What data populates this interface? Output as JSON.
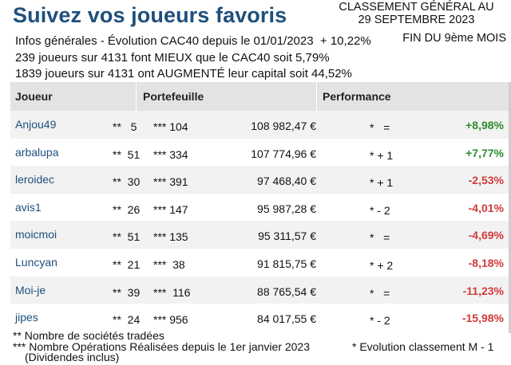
{
  "header": {
    "title": "Suivez vos joueurs favoris",
    "classement_line1": "CLASSEMENT GÉNÉRAL AU",
    "classement_line2": "29 SEPTEMBRE 2023",
    "fin_mois": "FIN DU 9ème MOIS"
  },
  "info": {
    "line1": "Infos générales - Évolution CAC40 depuis le 01/01/2023  + 10,22%",
    "line2": "239 joueurs sur 4131 font MIEUX que le CAC40 soit 5,79%",
    "line3": "1839 joueurs sur 4131 ont AUGMENTÉ leur capital soit 44,52%"
  },
  "table": {
    "headers": {
      "player": "Joueur",
      "portfolio": "Portefeuille",
      "performance": "Performance"
    },
    "rows": [
      {
        "player": "Anjou49",
        "nb": "**   5",
        "ops": "*** 104",
        "value": "108 982,47 €",
        "evo": "*   =",
        "perf": "+8,98%",
        "sign": "pos"
      },
      {
        "player": "arbalupa",
        "nb": "**  51",
        "ops": "*** 334",
        "value": "107 774,96 €",
        "evo": "* + 1",
        "perf": "+7,77%",
        "sign": "pos"
      },
      {
        "player": "leroidec",
        "nb": "**  30",
        "ops": "*** 391",
        "value": "97 468,40 €",
        "evo": "* + 1",
        "perf": "-2,53%",
        "sign": "neg"
      },
      {
        "player": "avis1",
        "nb": "**  26",
        "ops": "*** 147",
        "value": "95 987,28 €",
        "evo": "* - 2",
        "perf": "-4,01%",
        "sign": "neg"
      },
      {
        "player": "moicmoi",
        "nb": "**  51",
        "ops": "*** 135",
        "value": "95 311,57 €",
        "evo": "*   =",
        "perf": "-4,69%",
        "sign": "neg"
      },
      {
        "player": "Luncyan",
        "nb": "**  21",
        "ops": "***  38",
        "value": "91 815,75 €",
        "evo": "* + 2",
        "perf": "-8,18%",
        "sign": "neg"
      },
      {
        "player": "Moi-je",
        "nb": "**  39",
        "ops": "***  116",
        "value": "88 765,54 €",
        "evo": "*   =",
        "perf": "-11,23%",
        "sign": "neg"
      },
      {
        "player": "jipes",
        "nb": "**  24",
        "ops": "*** 956",
        "value": "84 017,55 €",
        "evo": "* - 2",
        "perf": "-15,98%",
        "sign": "neg"
      }
    ]
  },
  "footer": {
    "note1": "** Nombre de sociétés tradées",
    "note2": "*** Nombre Opérations Réalisées depuis le 1er janvier 2023",
    "note3": "(Dividendes inclus)",
    "note4": "* Evolution classement M - 1"
  },
  "colors": {
    "title": "#1f4f7c",
    "positive": "#2e8b2e",
    "negative": "#d13a3a",
    "header_bg": "#e3e3e3",
    "row_alt_bg": "#f2f2f2"
  }
}
